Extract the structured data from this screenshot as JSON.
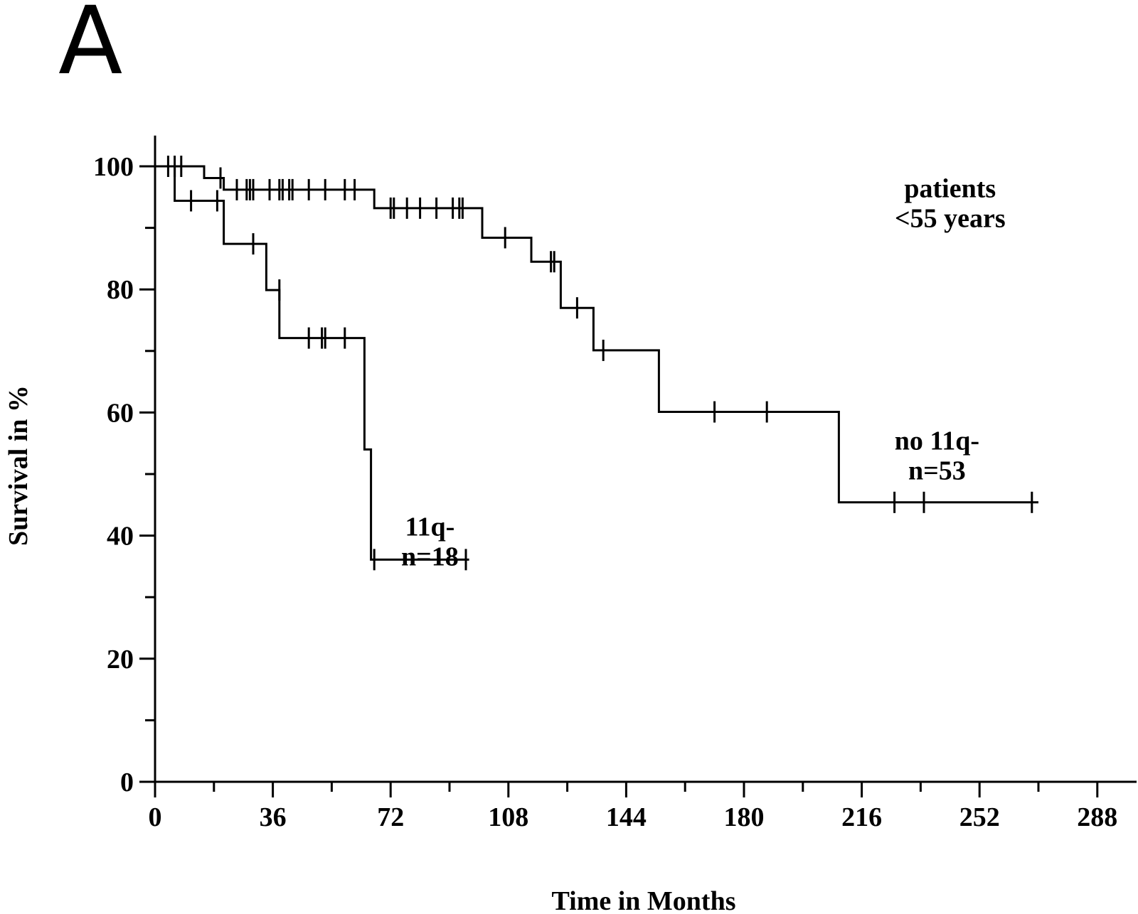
{
  "panel_label": "A",
  "chart_data": {
    "type": "line",
    "subtype": "kaplan-meier step",
    "xlabel": "Time in Months",
    "ylabel": "Survival in %",
    "xlim": [
      0,
      300
    ],
    "ylim": [
      0,
      105
    ],
    "x_ticks": [
      0,
      36,
      72,
      108,
      144,
      180,
      216,
      252,
      288
    ],
    "y_ticks": [
      0,
      20,
      40,
      60,
      80,
      100
    ],
    "grid": false,
    "annotations": [
      {
        "lines": [
          "patients",
          "<55 years"
        ],
        "x": 243,
        "y": 95
      },
      {
        "lines": [
          "no 11q-",
          "n=53"
        ],
        "x": 239,
        "y": 54
      },
      {
        "lines": [
          "11q-",
          "n=18"
        ],
        "x": 84,
        "y": 40
      }
    ],
    "series": [
      {
        "steps": [
          [
            0,
            100
          ],
          [
            15,
            100
          ],
          [
            15,
            98.1
          ],
          [
            21,
            98.1
          ],
          [
            21,
            96.2
          ],
          [
            67,
            96.2
          ],
          [
            67,
            93.2
          ],
          [
            100,
            93.2
          ],
          [
            100,
            88.4
          ],
          [
            115,
            88.4
          ],
          [
            115,
            84.5
          ],
          [
            124,
            84.5
          ],
          [
            124,
            77
          ],
          [
            134,
            77
          ],
          [
            134,
            70.1
          ],
          [
            154,
            70.1
          ],
          [
            154,
            60.1
          ],
          [
            209,
            60.1
          ],
          [
            209,
            45.4
          ],
          [
            270,
            45.4
          ]
        ],
        "censored": [
          [
            4,
            100
          ],
          [
            6,
            100
          ],
          [
            8,
            100
          ],
          [
            20,
            98.1
          ],
          [
            25,
            96.2
          ],
          [
            28,
            96.2
          ],
          [
            29,
            96.2
          ],
          [
            30,
            96.2
          ],
          [
            35,
            96.2
          ],
          [
            38,
            96.2
          ],
          [
            39,
            96.2
          ],
          [
            41,
            96.2
          ],
          [
            42,
            96.2
          ],
          [
            47,
            96.2
          ],
          [
            52,
            96.2
          ],
          [
            58,
            96.2
          ],
          [
            61,
            96.2
          ],
          [
            72,
            93.2
          ],
          [
            73,
            93.2
          ],
          [
            77,
            93.2
          ],
          [
            81,
            93.2
          ],
          [
            86,
            93.2
          ],
          [
            91,
            93.2
          ],
          [
            93,
            93.2
          ],
          [
            94,
            93.2
          ],
          [
            107,
            88.4
          ],
          [
            121,
            84.5
          ],
          [
            122,
            84.5
          ],
          [
            129,
            77
          ],
          [
            137,
            70.1
          ],
          [
            171,
            60.1
          ],
          [
            187,
            60.1
          ],
          [
            226,
            45.4
          ],
          [
            235,
            45.4
          ],
          [
            268,
            45.4
          ]
        ]
      },
      {
        "steps": [
          [
            0,
            100
          ],
          [
            6,
            100
          ],
          [
            6,
            94.4
          ],
          [
            21,
            94.4
          ],
          [
            21,
            87.4
          ],
          [
            34,
            87.4
          ],
          [
            34,
            79.9
          ],
          [
            38,
            79.9
          ],
          [
            38,
            72.1
          ],
          [
            64,
            72.1
          ],
          [
            64,
            54
          ],
          [
            66,
            54
          ],
          [
            66,
            36.1
          ],
          [
            96,
            36.1
          ]
        ],
        "censored": [
          [
            11,
            94.4
          ],
          [
            19,
            94.4
          ],
          [
            30,
            87.4
          ],
          [
            38,
            79.9
          ],
          [
            47,
            72.1
          ],
          [
            51,
            72.1
          ],
          [
            52,
            72.1
          ],
          [
            58,
            72.1
          ],
          [
            67,
            36.1
          ],
          [
            95,
            36.1
          ]
        ]
      }
    ]
  }
}
